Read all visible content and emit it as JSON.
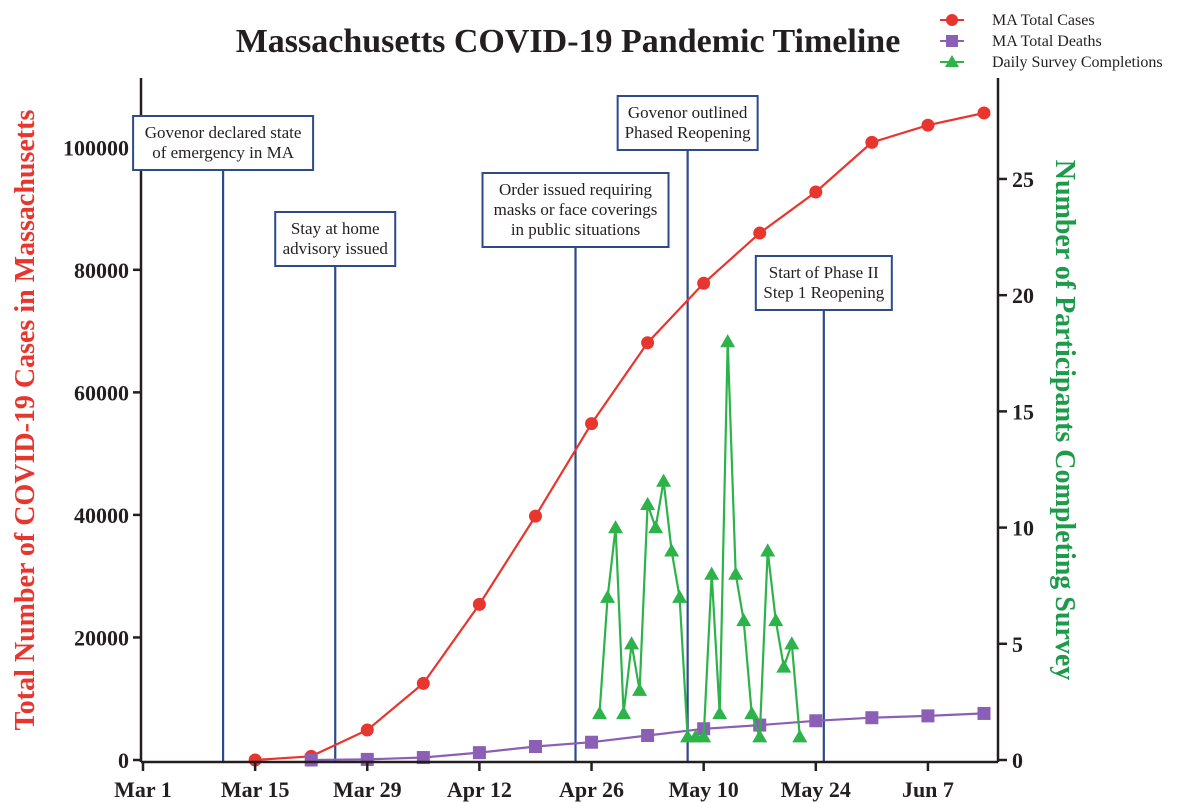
{
  "chart_data": {
    "type": "line",
    "title": "Massachusetts COVID-19 Pandemic Timeline",
    "ylabel": "Total Number of COVID-19 Cases in Massachusetts",
    "ylabel_right": "Number of Participants Completing Survey",
    "x_ticks": [
      {
        "label": "Mar 1",
        "day": 0
      },
      {
        "label": "Mar 15",
        "day": 14
      },
      {
        "label": "Mar 29",
        "day": 28
      },
      {
        "label": "Apr 12",
        "day": 42
      },
      {
        "label": "Apr 26",
        "day": 56
      },
      {
        "label": "May 10",
        "day": 70
      },
      {
        "label": "May 24",
        "day": 84
      },
      {
        "label": "Jun 7",
        "day": 98
      }
    ],
    "xlim": [
      0,
      105
    ],
    "ylim_left": [
      0,
      110000
    ],
    "ylim_right": [
      0,
      29
    ],
    "yticks_left": [
      0,
      20000,
      40000,
      60000,
      80000,
      100000
    ],
    "yticks_right": [
      0,
      5,
      10,
      15,
      20,
      25
    ],
    "legend_position": "top-right",
    "series": [
      {
        "name": "MA Total Cases",
        "axis": "left",
        "color": "#e8352e",
        "marker": "circle",
        "points": [
          [
            14,
            0
          ],
          [
            21,
            600
          ],
          [
            28,
            4900
          ],
          [
            35,
            12500
          ],
          [
            42,
            25400
          ],
          [
            49,
            39800
          ],
          [
            56,
            54900
          ],
          [
            63,
            68100
          ],
          [
            70,
            77800
          ],
          [
            77,
            86000
          ],
          [
            84,
            92700
          ],
          [
            91,
            100800
          ],
          [
            98,
            103600
          ],
          [
            105,
            105600
          ]
        ]
      },
      {
        "name": "MA Total Deaths",
        "axis": "left",
        "color": "#8b5fb5",
        "marker": "square",
        "points": [
          [
            21,
            0
          ],
          [
            28,
            100
          ],
          [
            35,
            400
          ],
          [
            42,
            1200
          ],
          [
            49,
            2200
          ],
          [
            56,
            2900
          ],
          [
            63,
            4000
          ],
          [
            70,
            5100
          ],
          [
            77,
            5700
          ],
          [
            84,
            6400
          ],
          [
            91,
            6900
          ],
          [
            98,
            7200
          ],
          [
            105,
            7600
          ]
        ]
      },
      {
        "name": "Daily Survey Completions",
        "axis": "right",
        "color": "#2db34a",
        "marker": "triangle",
        "points": [
          [
            57,
            2
          ],
          [
            58,
            7
          ],
          [
            59,
            10
          ],
          [
            60,
            2
          ],
          [
            61,
            5
          ],
          [
            62,
            3
          ],
          [
            63,
            11
          ],
          [
            64,
            10
          ],
          [
            65,
            12
          ],
          [
            66,
            9
          ],
          [
            67,
            7
          ],
          [
            68,
            1
          ],
          [
            69,
            1
          ],
          [
            70,
            1
          ],
          [
            71,
            8
          ],
          [
            72,
            2
          ],
          [
            73,
            18
          ],
          [
            74,
            8
          ],
          [
            75,
            6
          ],
          [
            76,
            2
          ],
          [
            77,
            1
          ],
          [
            78,
            9
          ],
          [
            79,
            6
          ],
          [
            80,
            4
          ],
          [
            81,
            5
          ],
          [
            82,
            1
          ]
        ]
      }
    ],
    "annotations": [
      {
        "day": 10,
        "lines": [
          "Govenor declared state",
          "of emergency in MA"
        ]
      },
      {
        "day": 24,
        "lines": [
          "Stay at home",
          "advisory issued"
        ]
      },
      {
        "day": 54,
        "lines": [
          "Order issued requiring",
          "masks or face coverings",
          "in public situations"
        ]
      },
      {
        "day": 68,
        "lines": [
          "Govenor outlined",
          "Phased Reopening"
        ]
      },
      {
        "day": 85,
        "lines": [
          "Start of Phase II",
          "Step 1 Reopening"
        ]
      }
    ]
  }
}
